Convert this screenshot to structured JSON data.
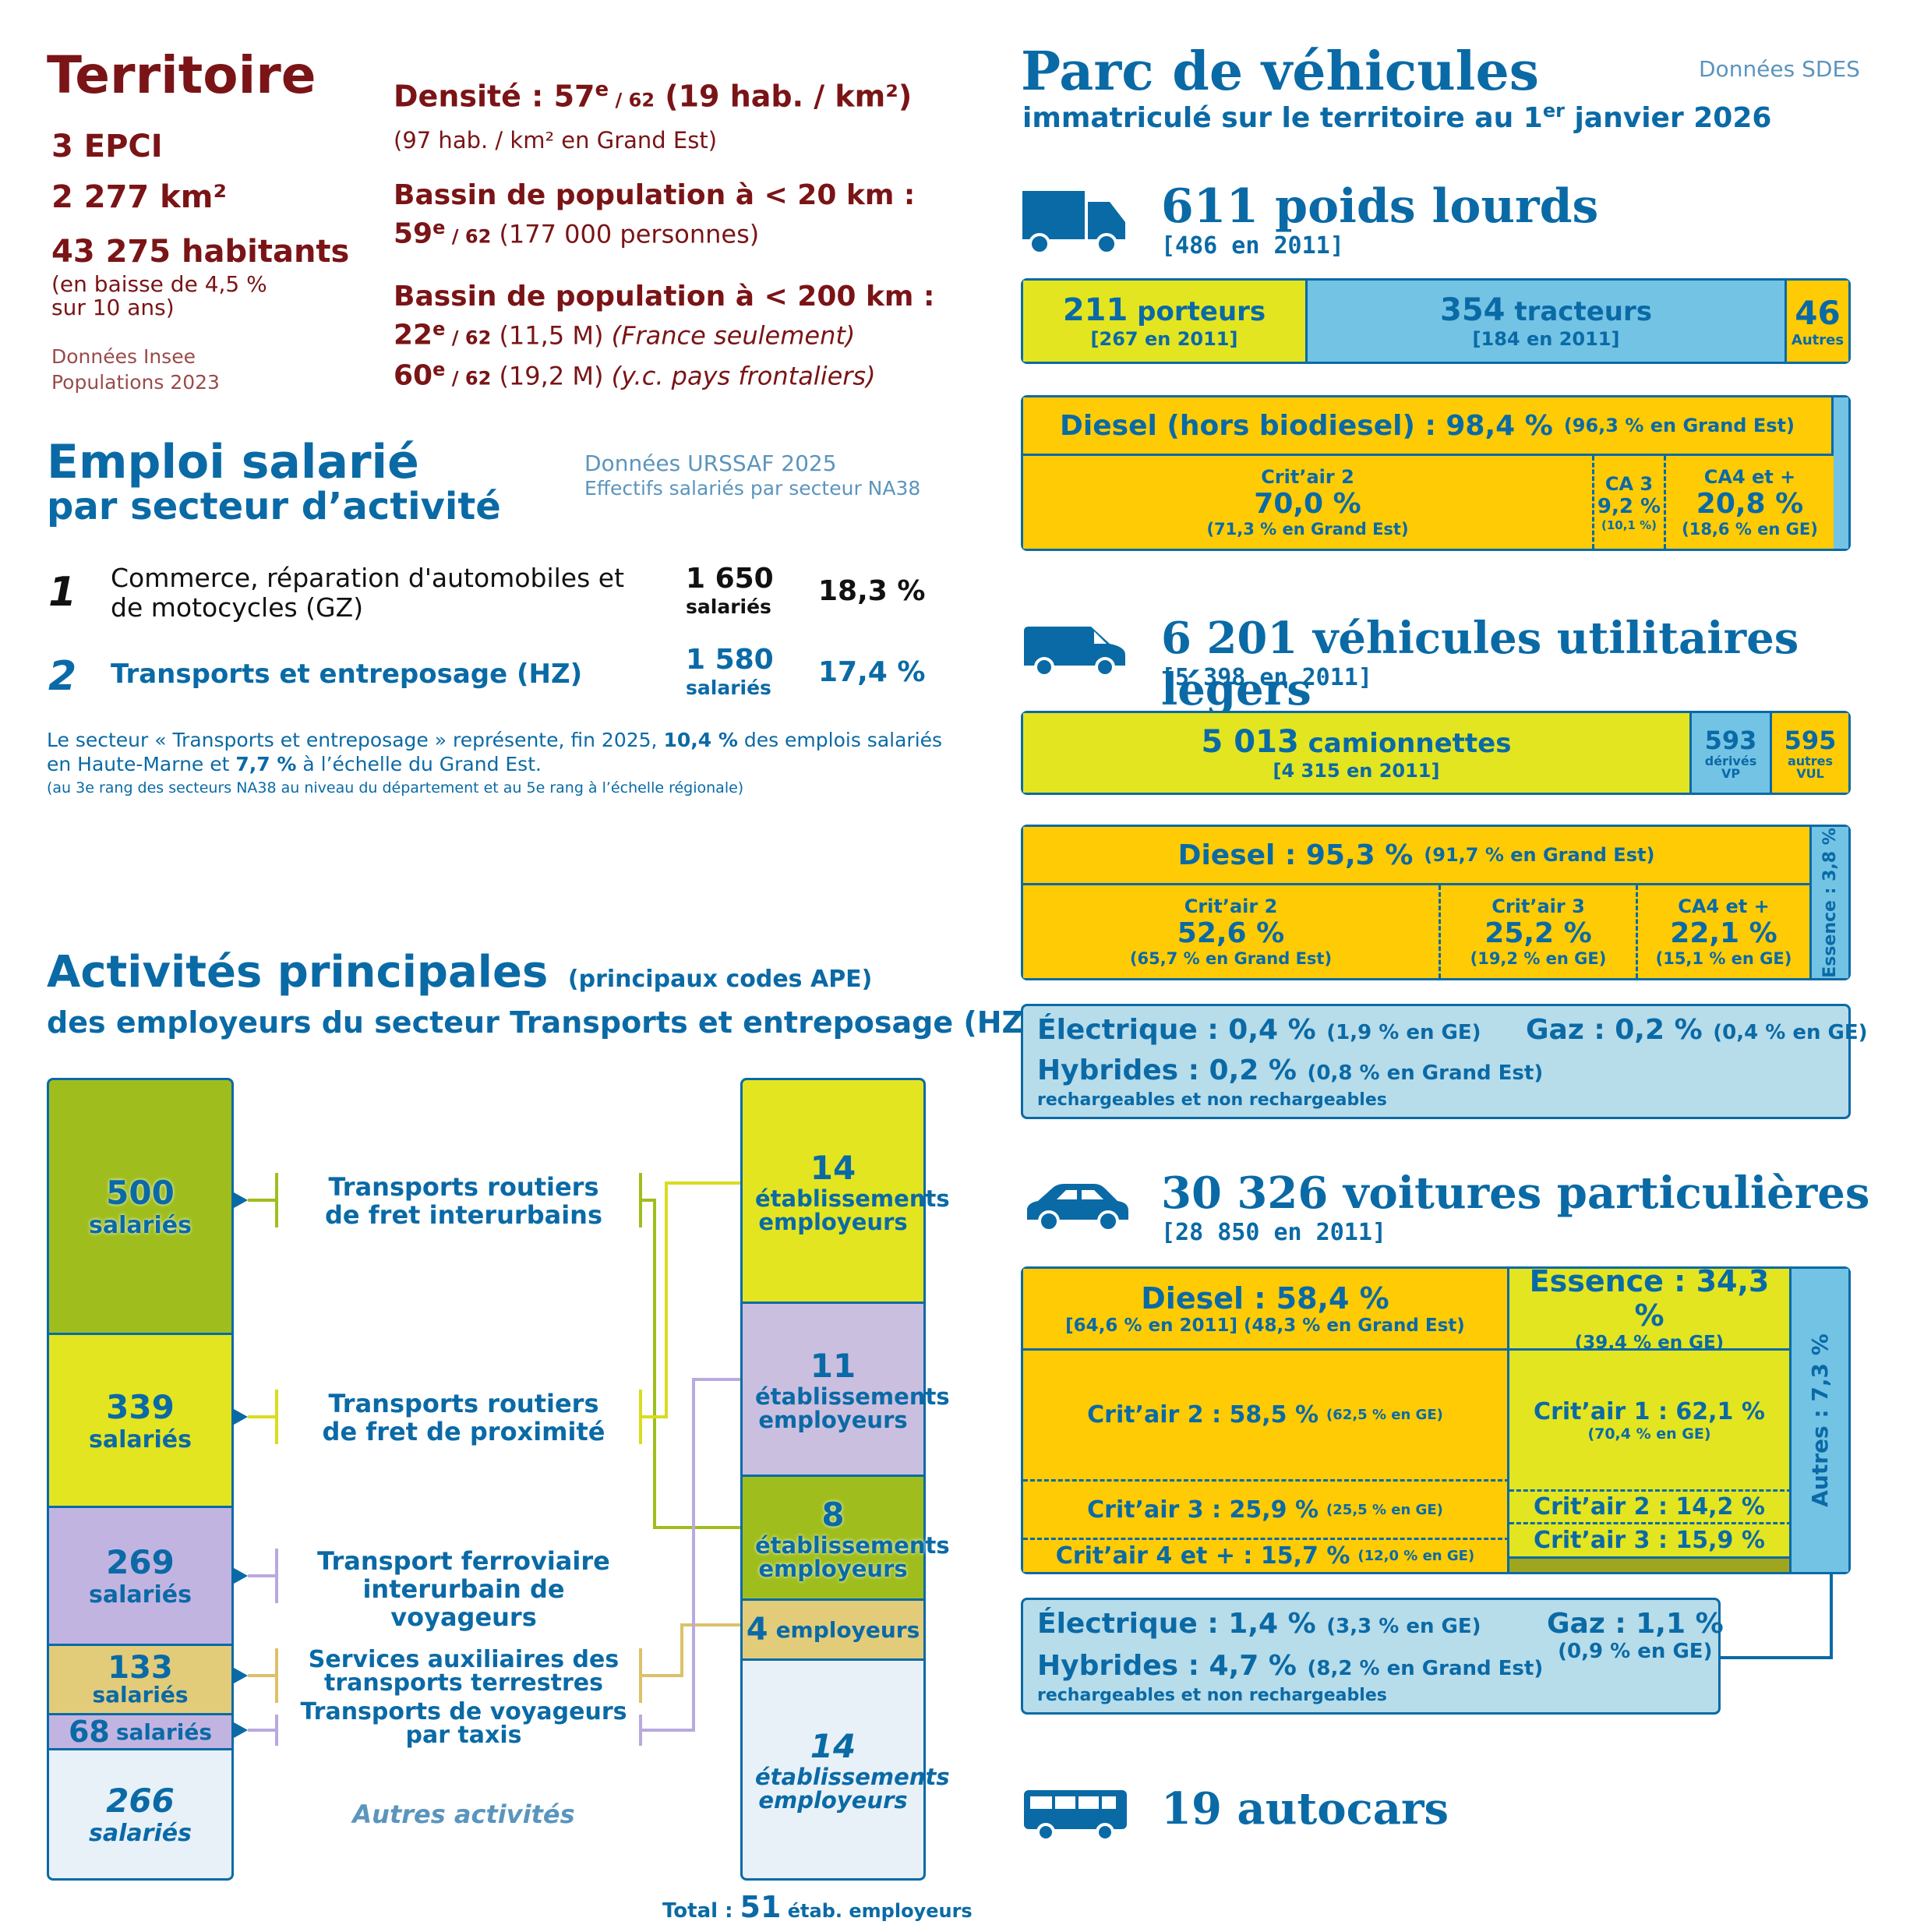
{
  "territoire": {
    "title": "Territoire",
    "epci": "3 EPCI",
    "area": "2 277 km²",
    "habitants": "43 275 habitants",
    "baisse_1": "(en baisse de 4,5 %",
    "baisse_2": "sur 10 ans)",
    "source_1": "Données Insee",
    "source_2": "Populations 2023",
    "densite_prefix": "Densité : 57",
    "densite_sup": "e",
    "densite_rank": " / 62",
    "densite_value": " (19 hab. / km²)",
    "densite_ge": "(97 hab. / km² en Grand Est)",
    "bassin20_title": "Bassin de population à < 20 km :",
    "bassin20_rank": "59",
    "bassin20_sup": "e",
    "bassin20_of": " / 62",
    "bassin20_value": " (177 000 personnes)",
    "bassin200_title": "Bassin de population à < 200 km :",
    "bassin200_rank1": "22",
    "bassin200_sup1": "e",
    "bassin200_of1": " / 62",
    "bassin200_value1": " (11,5 M) ",
    "bassin200_note1": "(France seulement)",
    "bassin200_rank2": "60",
    "bassin200_sup2": "e",
    "bassin200_of2": " / 62",
    "bassin200_value2": " (19,2 M) ",
    "bassin200_note2": "(y.c. pays frontaliers)"
  },
  "emploi": {
    "title": "Emploi salarié",
    "subtitle": "par secteur d’activité",
    "source_1": "Données URSSAF 2025",
    "source_2": "Effectifs salariés par secteur NA38",
    "rows": [
      {
        "rank": "1",
        "label_1": "Commerce, réparation d'automobiles et",
        "label_2": "de motocycles (GZ)",
        "count": "1 650",
        "unit": "salariés",
        "pct": "18,3 %"
      },
      {
        "rank": "2",
        "label_1": "Transports et entreposage (HZ)",
        "label_2": "",
        "count": "1 580",
        "unit": "salariés",
        "pct": "17,4 %"
      }
    ],
    "note_1a": "Le secteur « Transports et entreposage » représente, fin 2025, ",
    "note_1b": "10,4 %",
    "note_1c": " des emplois salariés",
    "note_2a": "en Haute-Marne et ",
    "note_2b": "7,7 %",
    "note_2c": " à l’échelle du Grand Est.",
    "note_3": "(au 3e rang des secteurs NA38 au niveau du département et au 5e rang à l’échelle régionale)"
  },
  "activites": {
    "title": "Activités principales",
    "title_note": "(principaux codes APE)",
    "subtitle": "des employeurs du secteur Transports et entreposage (HZ)",
    "left": [
      {
        "value": "500",
        "unit": "salariés",
        "color": "#9fbe1e"
      },
      {
        "value": "339",
        "unit": "salariés",
        "color": "#e3e521"
      },
      {
        "value": "269",
        "unit": "salariés",
        "color": "#c2b4e1"
      },
      {
        "value": "133",
        "unit": "salariés",
        "color": "#e2cc7a"
      },
      {
        "value": "68",
        "unit": "salariés",
        "color": "#c2b4e1"
      },
      {
        "value": "266",
        "unit": "salariés",
        "color": "#e8f1f8"
      }
    ],
    "labels": [
      "Transports routiers de fret interurbains",
      "Transports routiers de fret de proximité",
      "Transport ferroviaire interurbain de voyageurs",
      "Services auxiliaires des transports terrestres",
      "Transports de voyageurs par taxis",
      "Autres activités"
    ],
    "right": [
      {
        "value": "14",
        "unit": "établissements employeurs",
        "color": "#e3e521"
      },
      {
        "value": "11",
        "unit": "établissements employeurs",
        "color": "#cbbfe0"
      },
      {
        "value": "8",
        "unit": "établissements employeurs",
        "color": "#9fbe1e"
      },
      {
        "value": "4",
        "unit": "employeurs",
        "color": "#e2cc7a"
      },
      {
        "value": "14",
        "unit": "établissements employeurs",
        "color": "#e8f1f8"
      }
    ],
    "total_label": "Total : ",
    "total_value": "51",
    "total_unit": " étab. employeurs"
  },
  "parc": {
    "title": "Parc de véhicules",
    "subtitle_a": "immatriculé sur le territoire au 1",
    "subtitle_sup": "er",
    "subtitle_b": " janvier 2026",
    "source": "Données SDES",
    "pl": {
      "title": "611 poids lourds",
      "ref": "[486 en 2011]",
      "porteurs_v": "211",
      "porteurs_l": " porteurs",
      "porteurs_ref": "[267 en 2011]",
      "tracteurs_v": "354",
      "tracteurs_l": " tracteurs",
      "tracteurs_ref": "[184 en 2011]",
      "autres_v": "46",
      "autres_l": "Autres",
      "diesel": "Diesel (hors biodiesel) : 98,4 %",
      "diesel_ge": "(96,3 % en Grand Est)",
      "c2_l": "Crit’air 2",
      "c2_v": "70,0 %",
      "c2_ge": "(71,3 % en Grand Est)",
      "ca3_l": "CA 3",
      "ca3_v": "9,2 %",
      "ca3_ge": "(10,1 %)",
      "ca4_l": "CA4 et +",
      "ca4_v": "20,8 %",
      "ca4_ge": "(18,6 % en GE)"
    },
    "vul": {
      "title": "6 201 véhicules utilitaires légers",
      "ref": "[5 398 en 2011]",
      "cam_v": "5 013",
      "cam_l": " camionnettes",
      "cam_ref": "[4 315 en 2011]",
      "dvp_v": "593",
      "dvp_l1": "dérivés",
      "dvp_l2": "VP",
      "aut_v": "595",
      "aut_l1": "autres",
      "aut_l2": "VUL",
      "diesel": "Diesel : 95,3 %",
      "diesel_ge": "(91,7 % en Grand Est)",
      "c2_l": "Crit’air 2",
      "c2_v": "52,6 %",
      "c2_ge": "(65,7 % en Grand Est)",
      "c3_l": "Crit’air 3",
      "c3_v": "25,2 %",
      "c3_ge": "(19,2 % en GE)",
      "ca4_l": "CA4 et +",
      "ca4_v": "22,1 %",
      "ca4_ge": "(15,1 % en GE)",
      "essence": "Essence : 3,8 %",
      "elec": "Électrique : 0,4 %",
      "elec_ge": "(1,9 % en GE)",
      "gaz": "Gaz : 0,2 %",
      "gaz_ge": "(0,4 % en GE)",
      "hyb": "Hybrides : 0,2 %",
      "hyb_ge": "(0,8 % en Grand Est)",
      "hyb_note": "rechargeables et non rechargeables"
    },
    "vp": {
      "title": "30 326 voitures particulières",
      "ref": "[28 850 en 2011]",
      "diesel": "Diesel : 58,4 %",
      "diesel_ref": "[64,6 % en 2011]  (48,3 % en Grand Est)",
      "essence": "Essence : 34,3 %",
      "essence_ge": "(39,4 % en GE)",
      "d_c2": "Crit’air 2 : 58,5 %",
      "d_c2_ge": "(62,5 % en GE)",
      "d_c3": "Crit’air 3 : 25,9 %",
      "d_c3_ge": "(25,5 % en GE)",
      "d_c4": "Crit’air 4 et + : 15,7 %",
      "d_c4_ge": "(12,0 % en GE)",
      "e_c1": "Crit’air 1 : 62,1 %",
      "e_c1_ge": "(70,4 % en GE)",
      "e_c2": "Crit’air 2 : 14,2 %",
      "e_c3": "Crit’air 3 : 15,9 %",
      "autres": "Autres : 7,3 %",
      "elec": "Électrique : 1,4 %",
      "elec_ge": "(3,3 % en GE)",
      "gaz": "Gaz : 1,1 %",
      "gaz_ge": "(0,9 % en GE)",
      "hyb": "Hybrides : 4,7 %",
      "hyb_ge": "(8,2 % en Grand Est)",
      "hyb_note": "rechargeables et non rechargeables"
    },
    "autocars": {
      "title": "19 autocars"
    }
  },
  "colors": {
    "dark_red": "#7a1416",
    "blue": "#0a6aa6",
    "yellow": "#e3e521",
    "orange": "#ffcb05",
    "light_blue": "#73c3e5"
  }
}
